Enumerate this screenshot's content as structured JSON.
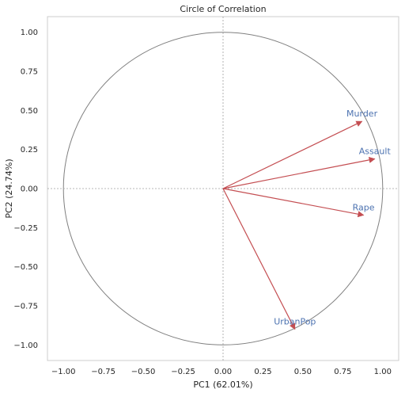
{
  "chart_data": {
    "type": "scatter",
    "title": "Circle of Correlation",
    "xlabel": "PC1 (62.01%)",
    "ylabel": "PC2 (24.74%)",
    "xlim": [
      -1.1,
      1.1
    ],
    "ylim": [
      -1.1,
      1.1
    ],
    "xticks": [
      "−1.00",
      "−0.75",
      "−0.50",
      "−0.25",
      "0.00",
      "0.25",
      "0.50",
      "0.75",
      "1.00"
    ],
    "yticks": [
      "1.00",
      "0.75",
      "0.50",
      "0.25",
      "0.00",
      "−0.25",
      "−0.50",
      "−0.75",
      "−1.00"
    ],
    "grid": false,
    "unit_circle": true,
    "reference_lines": {
      "x": 0,
      "y": 0
    },
    "vectors": [
      {
        "name": "Murder",
        "x": 0.87,
        "y": 0.43
      },
      {
        "name": "Assault",
        "x": 0.95,
        "y": 0.19
      },
      {
        "name": "Rape",
        "x": 0.88,
        "y": -0.17
      },
      {
        "name": "UrbanPop",
        "x": 0.45,
        "y": -0.9
      }
    ],
    "colors": {
      "arrow": "#c44e52",
      "label": "#4c72b0",
      "circle": "#808080",
      "refline": "#a0a0a0",
      "frame": "#cccccc",
      "text": "#262626"
    }
  }
}
